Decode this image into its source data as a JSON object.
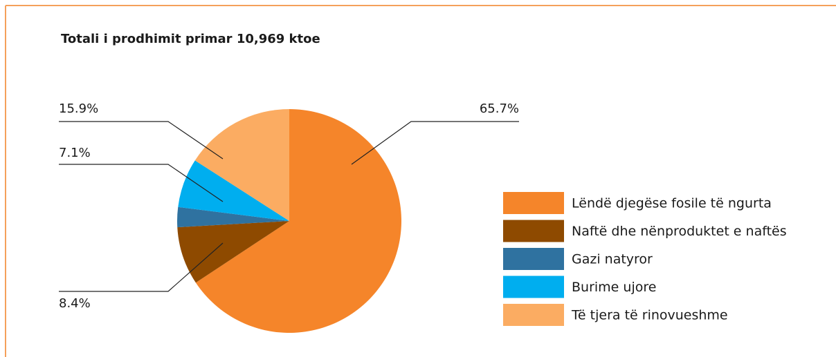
{
  "chart_data": {
    "type": "pie",
    "title": "Totali i prodhimit primar 10,969 ktoe",
    "categories": [
      "Lëndë djegëse fosile të ngurta",
      "Naftë dhe nënproduktet e naftës",
      "Gazi natyror",
      "Burime ujore",
      "Të tjera të rinovueshme"
    ],
    "values": [
      65.7,
      8.4,
      2.9,
      7.1,
      15.9
    ],
    "value_labels": [
      "65.7%",
      "8.4%",
      null,
      "7.1%",
      "15.9%"
    ],
    "colors": [
      "#f5852a",
      "#8e4a00",
      "#2f72a0",
      "#00aeef",
      "#fbac62"
    ],
    "legend": "right"
  }
}
